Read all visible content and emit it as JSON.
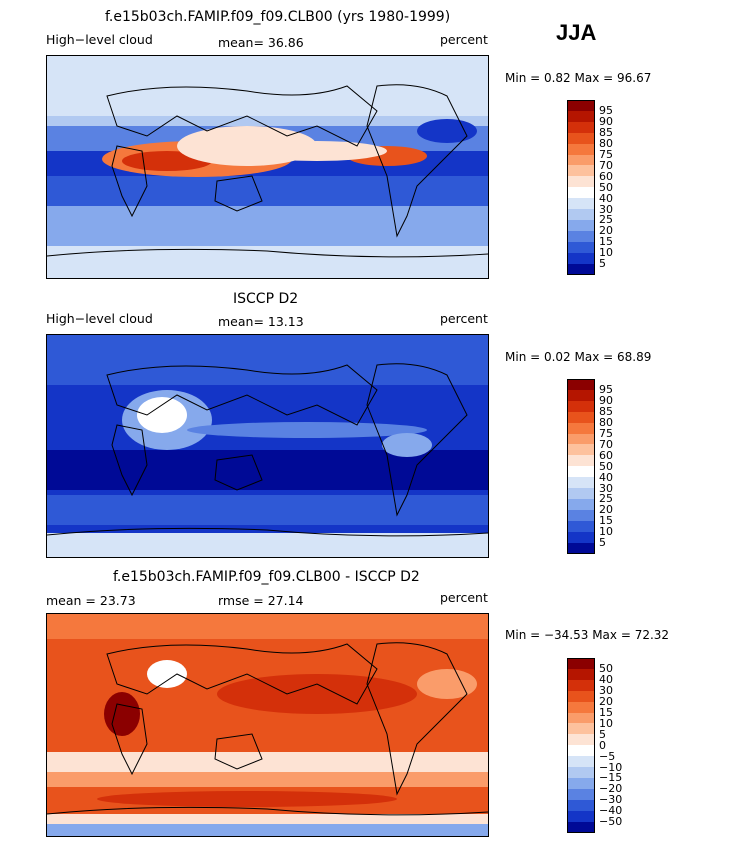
{
  "season": "JJA",
  "panels": [
    {
      "title": "f.e15b03ch.FAMIP.f09_f09.CLB00 (yrs 1980-1999)",
      "left_label": "High−level cloud",
      "center_label": "mean=   36.86",
      "right_label": "percent",
      "minmax": "Min =    0.82 Max =   96.67",
      "colorbar": {
        "labels": [
          "95",
          "90",
          "85",
          "80",
          "75",
          "70",
          "60",
          "50",
          "40",
          "30",
          "25",
          "20",
          "15",
          "10",
          "5"
        ],
        "colors": [
          "#8b0000",
          "#b51500",
          "#d4300a",
          "#e8531c",
          "#f5783d",
          "#fa9c6a",
          "#fdc19d",
          "#fde3d4",
          "#ffffff",
          "#d6e4f7",
          "#b1c9f1",
          "#86a9ec",
          "#5a82e2",
          "#2f59d6",
          "#1435c7",
          "#000a96"
        ]
      }
    },
    {
      "title": "ISCCP D2",
      "left_label": "High−level cloud",
      "center_label": "mean=   13.13",
      "right_label": "percent",
      "minmax": "Min =    0.02 Max =   68.89",
      "colorbar": {
        "labels": [
          "95",
          "90",
          "85",
          "80",
          "75",
          "70",
          "60",
          "50",
          "40",
          "30",
          "25",
          "20",
          "15",
          "10",
          "5"
        ],
        "colors": [
          "#8b0000",
          "#b51500",
          "#d4300a",
          "#e8531c",
          "#f5783d",
          "#fa9c6a",
          "#fdc19d",
          "#fde3d4",
          "#ffffff",
          "#d6e4f7",
          "#b1c9f1",
          "#86a9ec",
          "#5a82e2",
          "#2f59d6",
          "#1435c7",
          "#000a96"
        ]
      }
    },
    {
      "title": "f.e15b03ch.FAMIP.f09_f09.CLB00 - ISCCP D2",
      "left_label": "mean =   23.73",
      "center_label": "rmse =   27.14",
      "right_label": "percent",
      "minmax": "Min = −34.53 Max =   72.32",
      "colorbar": {
        "labels": [
          "50",
          "40",
          "30",
          "20",
          "15",
          "10",
          "5",
          "0",
          "−5",
          "−10",
          "−15",
          "−20",
          "−30",
          "−40",
          "−50"
        ],
        "colors": [
          "#8b0000",
          "#b51500",
          "#d4300a",
          "#e8531c",
          "#f5783d",
          "#fa9c6a",
          "#fdc19d",
          "#fde3d4",
          "#ffffff",
          "#d6e4f7",
          "#b1c9f1",
          "#86a9ec",
          "#5a82e2",
          "#2f59d6",
          "#1435c7",
          "#000a96"
        ]
      }
    }
  ],
  "chart_data": [
    {
      "type": "heatmap",
      "title": "f.e15b03ch.FAMIP.f09_f09.CLB00 (yrs 1980-1999)",
      "variable": "High−level cloud",
      "units": "percent",
      "mean": 36.86,
      "min": 0.82,
      "max": 96.67,
      "contour_levels": [
        5,
        10,
        15,
        20,
        25,
        30,
        40,
        50,
        60,
        70,
        75,
        80,
        85,
        90,
        95
      ]
    },
    {
      "type": "heatmap",
      "title": "ISCCP D2",
      "variable": "High−level cloud",
      "units": "percent",
      "mean": 13.13,
      "min": 0.02,
      "max": 68.89,
      "contour_levels": [
        5,
        10,
        15,
        20,
        25,
        30,
        40,
        50,
        60,
        70,
        75,
        80,
        85,
        90,
        95
      ]
    },
    {
      "type": "heatmap",
      "title": "f.e15b03ch.FAMIP.f09_f09.CLB00 - ISCCP D2",
      "units": "percent",
      "mean": 23.73,
      "rmse": 27.14,
      "min": -34.53,
      "max": 72.32,
      "contour_levels": [
        -50,
        -40,
        -30,
        -20,
        -15,
        -10,
        -5,
        0,
        5,
        10,
        15,
        20,
        30,
        40,
        50
      ]
    }
  ]
}
